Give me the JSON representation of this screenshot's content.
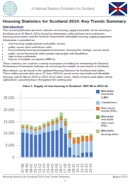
{
  "page": {
    "header_subtitle": "A National Statistics Publication for Scotland",
    "title": "Housing Statistics for Scotland 2014: Key Trends Summary",
    "section_intro": "Introduction",
    "intro_lines": [
      "This annual publication presents statistics on housing supply and public sector housing in",
      "Scotland up to 31 March 2014, based on information collected from local authorities,",
      "housing associations and the Scottish Government affordable housing supply programme.",
      "Information is provided on:"
    ],
    "bullet_points": [
      "new housing supply (private and public sector)",
      "public sector stock and house sales",
      "local authority housing management (evictions, housing lets, lettings, vacant stock)",
      "public sector housing for older people and people with disabilities.",
      "right to buy entitlement",
      "houses in multiple occupation (HMOs)."
    ],
    "para2_lines": [
      "These statistics are used for a variety of purposes including for monitoring the National",
      "Performance Framework Indicator on increasing the number of new homes in Scotland."
    ],
    "para3_lines": [
      "More details can be found in the updated Housing Statistics for Scotland web tables.",
      "These tables present data up to 20 June 2014 for social sector new build and affordable",
      "housing, and 31 March 2014 or 2013-14 for other series. Some of these web tables will be",
      "updated on a quarterly basis throughout the coming year."
    ],
    "footer_left": "Housing Statistics for Scotland 2014: Key Trends Summary",
    "footer_right": "August 2014",
    "footer_page": "1"
  },
  "chart_data": {
    "type": "bar",
    "title": "Chart 1: Supply of new housing in Scotland: 1997-98 to 2013-14",
    "categories": [
      "97-98",
      "98-99",
      "99-00",
      "00-01",
      "01-02",
      "02-03",
      "03-04",
      "04-05",
      "05-06",
      "06-07",
      "07-08",
      "08-09",
      "09-10",
      "10-11",
      "11-12",
      "12-13",
      "13-14"
    ],
    "series": [
      {
        "name": "Affordable\nnew build\n(LAE)",
        "color": "#4472c4",
        "values": [
          10500,
          10200,
          9800,
          9500,
          9800,
          10500,
          10800,
          11200,
          11500,
          12500,
          10000,
          4200,
          900,
          800,
          1900,
          2100,
          2100
        ]
      },
      {
        "name": "Completions",
        "color": "#9dc3e6",
        "values": [
          1800,
          2000,
          2000,
          1800,
          2000,
          2200,
          2500,
          2700,
          2800,
          3000,
          3200,
          3800,
          4800,
          5000,
          4800,
          4600,
          4800
        ]
      },
      {
        "name": "New social\nrented (RSL)",
        "color": "#ed7d31",
        "values": [
          600,
          650,
          550,
          550,
          650,
          750,
          850,
          950,
          1050,
          1200,
          1400,
          1700,
          2100,
          2400,
          2200,
          2100,
          2300
        ]
      },
      {
        "name": "Affordable\nnew build\nother (non\nRSL)",
        "color": "#70ad47",
        "values": [
          350,
          380,
          320,
          280,
          350,
          400,
          450,
          550,
          650,
          750,
          750,
          650,
          450,
          350,
          300,
          270,
          320
        ]
      },
      {
        "name": "Affordable\nhousing other",
        "color": "#a9d18e",
        "values": [
          750,
          770,
          830,
          870,
          700,
          650,
          700,
          800,
          1000,
          1550,
          1150,
          1150,
          250,
          150,
          150,
          130,
          230
        ]
      }
    ],
    "stacked": true,
    "ylim": [
      0,
      28000
    ],
    "yticks": [
      0,
      {
        "value": 5000,
        "label": "5,000"
      },
      {
        "value": 10000,
        "label": "10,000"
      },
      {
        "value": 15000,
        "label": "15,000"
      },
      {
        "value": 20000,
        "label": "20,000"
      },
      {
        "value": 25000,
        "label": "25,000"
      }
    ],
    "grid": true,
    "legend": "right"
  }
}
